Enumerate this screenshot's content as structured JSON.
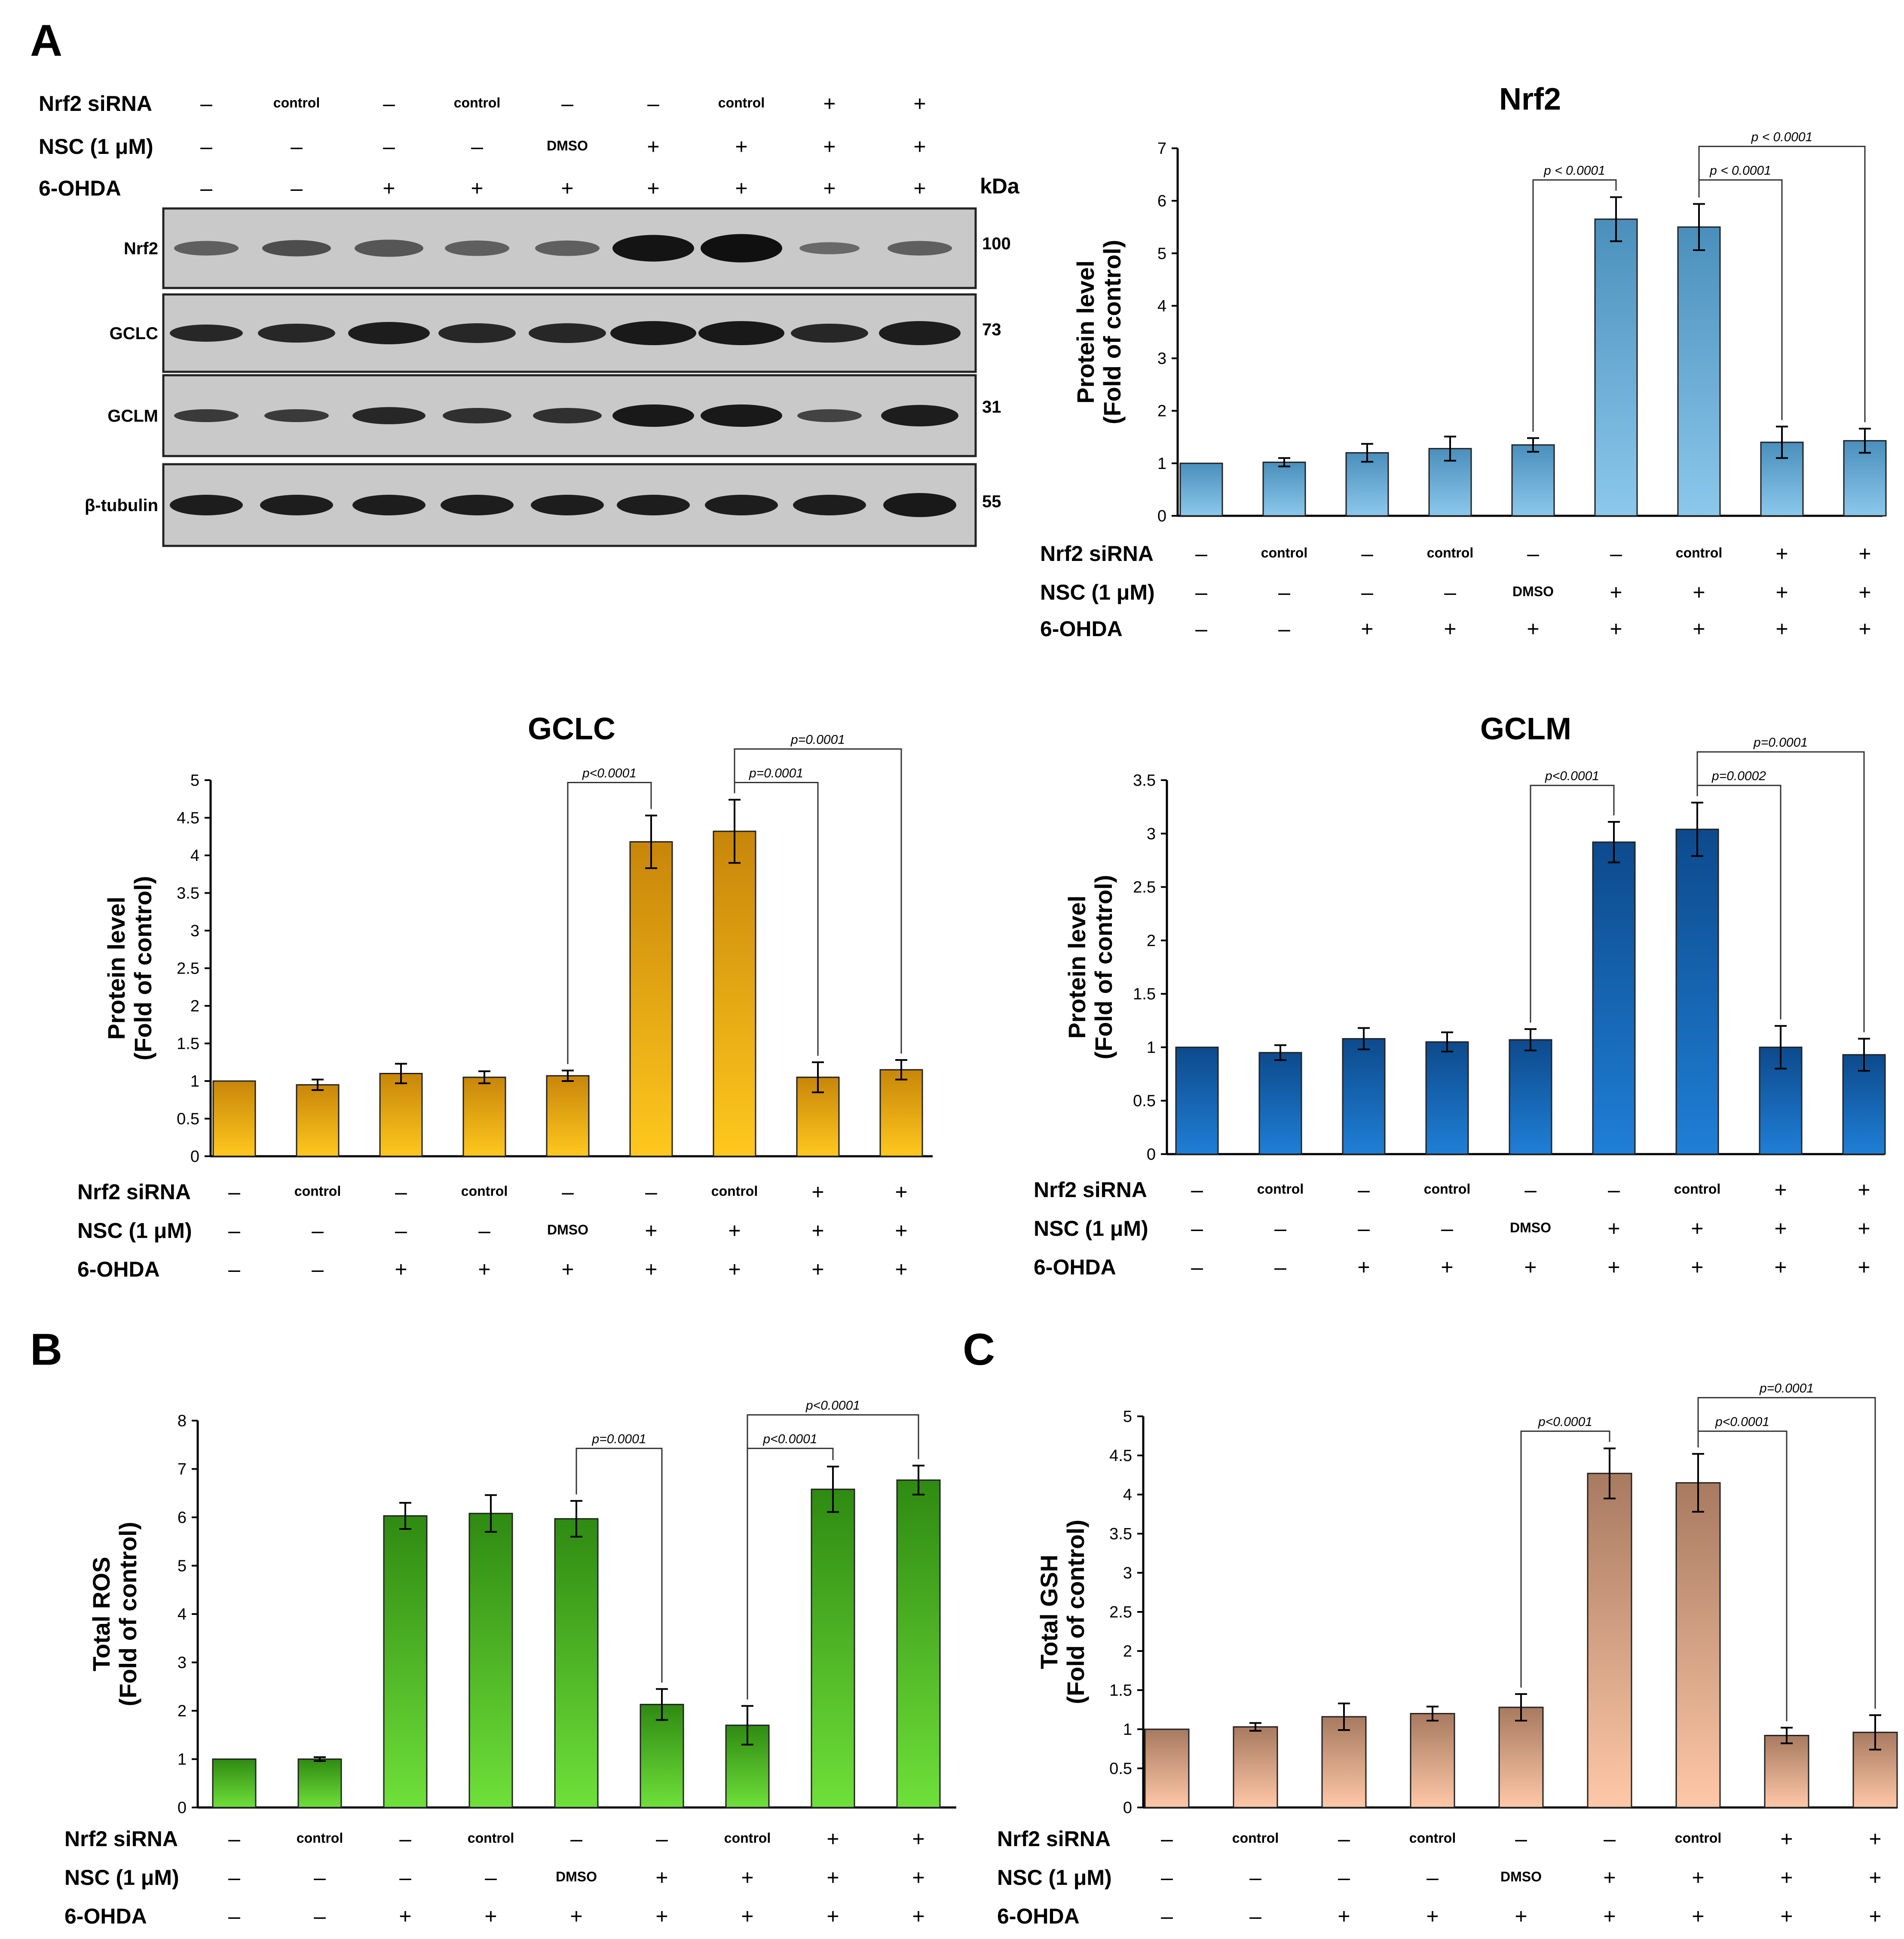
{
  "panels": {
    "a": "A",
    "b": "B",
    "c": "C"
  },
  "conditions": {
    "labels": [
      "Nrf2 siRNA",
      "NSC (1 μM)",
      "6-OHDA"
    ],
    "rows": [
      [
        "–",
        "control",
        "–",
        "control",
        "–",
        "–",
        "control",
        "+",
        "+"
      ],
      [
        "–",
        "–",
        "–",
        "–",
        "DMSO",
        "+",
        "+",
        "+",
        "+"
      ],
      [
        "–",
        "–",
        "+",
        "+",
        "+",
        "+",
        "+",
        "+",
        "+"
      ]
    ]
  },
  "blot": {
    "kda_label": "kDa",
    "proteins": [
      "Nrf2",
      "GCLC",
      "GCLM",
      "β-tubulin"
    ],
    "kda": [
      "100",
      "73",
      "31",
      "55"
    ]
  },
  "chart_data": [
    {
      "id": "nrf2",
      "type": "bar",
      "title": "Nrf2",
      "ylabel": [
        "Protein level",
        "(Fold of control)"
      ],
      "ylim": [
        0,
        7
      ],
      "yticks": [
        0,
        1,
        2,
        3,
        4,
        5,
        6,
        7
      ],
      "values": [
        1.0,
        1.02,
        1.2,
        1.28,
        1.35,
        5.65,
        5.5,
        1.4,
        1.43
      ],
      "errors": [
        0.0,
        0.08,
        0.17,
        0.23,
        0.13,
        0.42,
        0.44,
        0.3,
        0.23
      ],
      "colors": [
        "#4a8fbc",
        "#8cc8ec"
      ],
      "comparisons": [
        {
          "from": 5,
          "to": 6,
          "p": "p < 0.0001"
        },
        {
          "from": 7,
          "to": 8,
          "p": "p < 0.0001"
        },
        {
          "from": 7,
          "to": 9,
          "p": "p < 0.0001"
        }
      ]
    },
    {
      "id": "gclc",
      "type": "bar",
      "title": "GCLC",
      "ylabel": [
        "Protein level",
        "(Fold of control)"
      ],
      "ylim": [
        0,
        5
      ],
      "yticks": [
        0,
        0.5,
        1,
        1.5,
        2,
        2.5,
        3,
        3.5,
        4,
        4.5,
        5
      ],
      "values": [
        1.0,
        0.95,
        1.1,
        1.05,
        1.07,
        4.18,
        4.32,
        1.05,
        1.15
      ],
      "errors": [
        0.0,
        0.07,
        0.13,
        0.08,
        0.07,
        0.35,
        0.42,
        0.2,
        0.13
      ],
      "colors": [
        "#c8860a",
        "#ffc81e"
      ],
      "comparisons": [
        {
          "from": 5,
          "to": 6,
          "p": "p<0.0001"
        },
        {
          "from": 7,
          "to": 8,
          "p": "p=0.0001"
        },
        {
          "from": 7,
          "to": 9,
          "p": "p=0.0001"
        }
      ]
    },
    {
      "id": "gclm",
      "type": "bar",
      "title": "GCLM",
      "ylabel": [
        "Protein level",
        "(Fold of control)"
      ],
      "ylim": [
        0,
        3.5
      ],
      "yticks": [
        0,
        0.5,
        1,
        1.5,
        2,
        2.5,
        3,
        3.5
      ],
      "values": [
        1.0,
        0.95,
        1.08,
        1.05,
        1.07,
        2.92,
        3.04,
        1.0,
        0.93
      ],
      "errors": [
        0.0,
        0.07,
        0.1,
        0.09,
        0.1,
        0.19,
        0.25,
        0.2,
        0.15
      ],
      "colors": [
        "#0d4a8c",
        "#1f7fd6"
      ],
      "comparisons": [
        {
          "from": 5,
          "to": 6,
          "p": "p<0.0001"
        },
        {
          "from": 7,
          "to": 8,
          "p": "p=0.0002"
        },
        {
          "from": 7,
          "to": 9,
          "p": "p=0.0001"
        }
      ]
    },
    {
      "id": "ros",
      "type": "bar",
      "title": "",
      "ylabel": [
        "Total ROS",
        "(Fold of control)"
      ],
      "ylim": [
        0,
        8
      ],
      "yticks": [
        0,
        1,
        2,
        3,
        4,
        5,
        6,
        7,
        8
      ],
      "values": [
        1.0,
        1.0,
        6.03,
        6.08,
        5.97,
        2.13,
        1.7,
        6.58,
        6.77
      ],
      "errors": [
        0.0,
        0.04,
        0.27,
        0.38,
        0.37,
        0.32,
        0.4,
        0.47,
        0.3
      ],
      "colors": [
        "#2f8a12",
        "#6fe03a"
      ],
      "comparisons": [
        {
          "from": 5,
          "to": 6,
          "p": "p=0.0001"
        },
        {
          "from": 7,
          "to": 8,
          "p": "p<0.0001"
        },
        {
          "from": 7,
          "to": 9,
          "p": "p<0.0001"
        }
      ]
    },
    {
      "id": "gsh",
      "type": "bar",
      "title": "",
      "ylabel": [
        "Total GSH",
        "(Fold of control)"
      ],
      "ylim": [
        0,
        5
      ],
      "yticks": [
        0,
        0.5,
        1,
        1.5,
        2,
        2.5,
        3,
        3.5,
        4,
        4.5,
        5
      ],
      "values": [
        1.0,
        1.03,
        1.16,
        1.2,
        1.28,
        4.27,
        4.15,
        0.92,
        0.96
      ],
      "errors": [
        0.0,
        0.05,
        0.17,
        0.09,
        0.17,
        0.32,
        0.37,
        0.1,
        0.22
      ],
      "colors": [
        "#a87a60",
        "#ffc8a8"
      ],
      "comparisons": [
        {
          "from": 5,
          "to": 6,
          "p": "p<0.0001"
        },
        {
          "from": 7,
          "to": 8,
          "p": "p<0.0001"
        },
        {
          "from": 7,
          "to": 9,
          "p": "p=0.0001"
        }
      ]
    }
  ]
}
